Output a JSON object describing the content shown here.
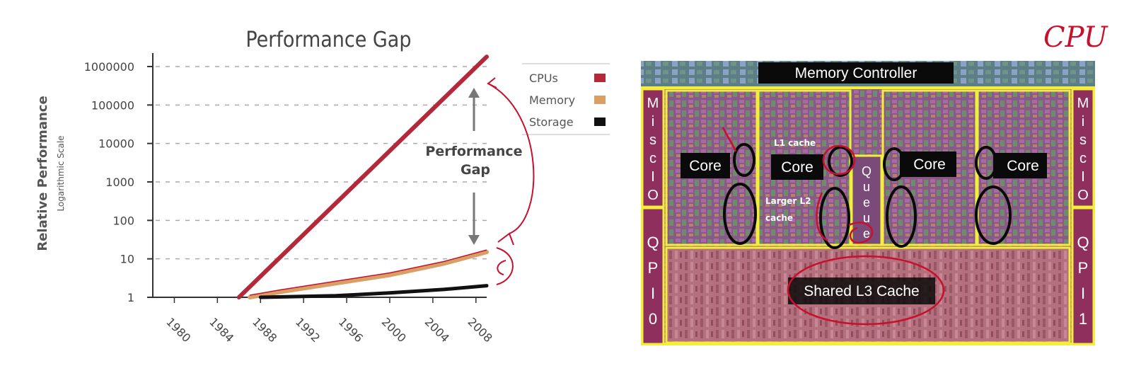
{
  "chart_data": {
    "type": "line",
    "title": "Performance Gap",
    "ylabel": "Relative Performance",
    "ylabel_sub": "Logarithmic Scale",
    "y_scale": "log",
    "ylim": [
      1,
      1000000
    ],
    "y_ticks": [
      "1000000",
      "100000",
      "10000",
      "1000",
      "100",
      "10",
      "1"
    ],
    "x_ticks": [
      "1980",
      "1984",
      "1988",
      "1992",
      "1996",
      "2000",
      "2004",
      "2008"
    ],
    "xlim": [
      1978,
      2009
    ],
    "grid": "horizontal dashed",
    "legend_position": "right",
    "series": [
      {
        "name": "CPUs",
        "color": "#b5283a",
        "x": [
          1986,
          2009
        ],
        "y": [
          1,
          1800000
        ]
      },
      {
        "name": "Memory",
        "color": "#d9a066",
        "x": [
          1987,
          1990,
          1995,
          2000,
          2005,
          2009
        ],
        "y": [
          1,
          1.4,
          2.3,
          3.8,
          7.5,
          15
        ]
      },
      {
        "name": "Storage",
        "color": "#111111",
        "x": [
          1988,
          1995,
          2000,
          2005,
          2009
        ],
        "y": [
          1,
          1.1,
          1.3,
          1.6,
          2.0
        ]
      }
    ],
    "annotation": [
      "Performance",
      "Gap"
    ]
  },
  "handwritten_note": "CPU",
  "chip": {
    "memory_controller": "Memory Controller",
    "misc_io_left": [
      "M",
      "i",
      "s",
      "c",
      "I",
      "O"
    ],
    "misc_io_right": [
      "M",
      "i",
      "s",
      "c",
      "I",
      "O"
    ],
    "qpi_left": [
      "Q",
      "P",
      "I",
      "0"
    ],
    "qpi_right": [
      "Q",
      "P",
      "I",
      "1"
    ],
    "cores": [
      "Core",
      "Core",
      "Core",
      "Core"
    ],
    "l1_label": "L1 cache",
    "l2_label_line1": "Larger L2",
    "l2_label_line2": "cache",
    "queue": [
      "Q",
      "u",
      "e",
      "u",
      "e"
    ],
    "l3": "Shared L3 Cache"
  }
}
